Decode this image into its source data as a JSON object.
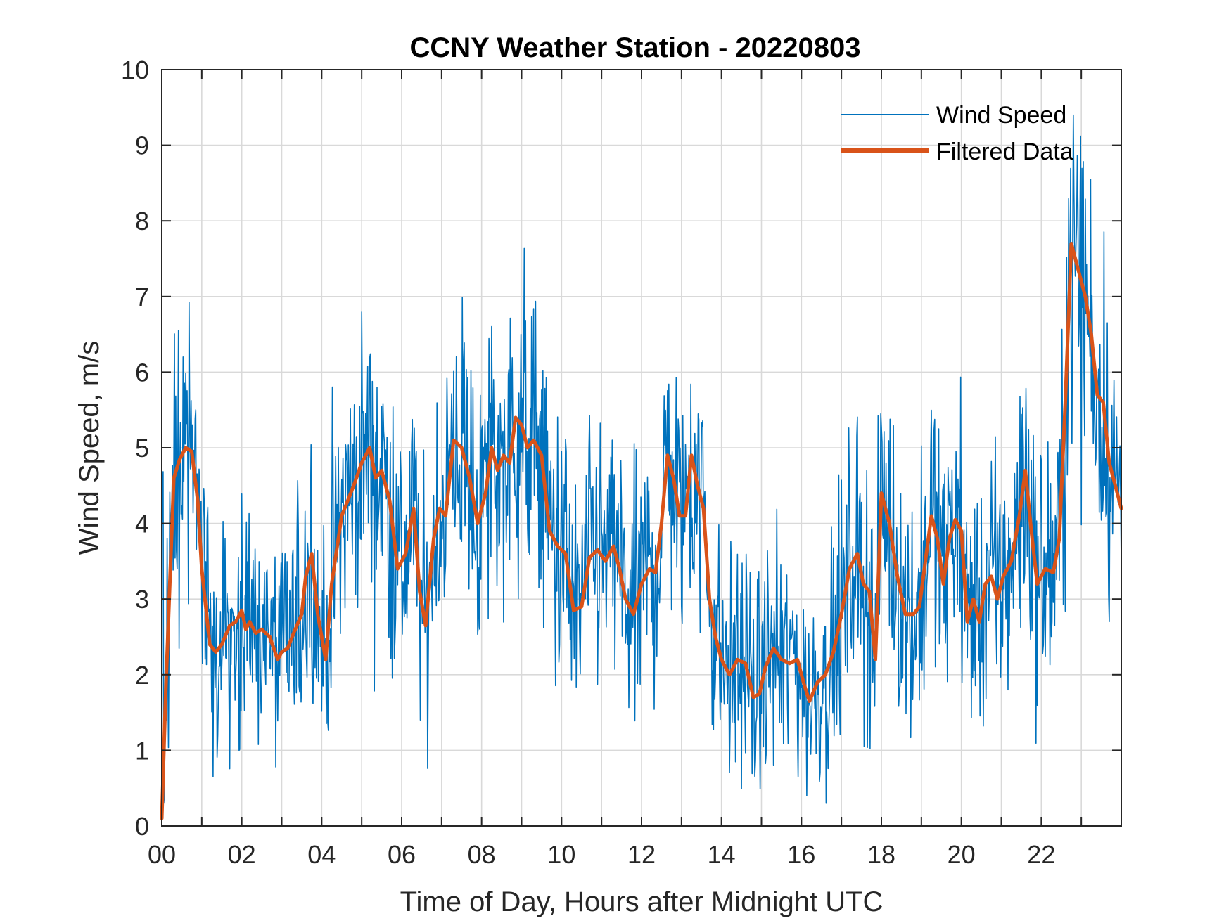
{
  "chart_data": {
    "type": "line",
    "title": "CCNY Weather Station - 20220803",
    "xlabel": "Time of Day, Hours after Midnight UTC",
    "ylabel": "Wind Speed, m/s",
    "xlim": [
      0,
      24
    ],
    "ylim": [
      0,
      10
    ],
    "xticks": [
      0,
      2,
      4,
      6,
      8,
      10,
      12,
      14,
      16,
      18,
      20,
      22
    ],
    "xtick_labels": [
      "00",
      "02",
      "04",
      "06",
      "08",
      "10",
      "12",
      "14",
      "16",
      "18",
      "20",
      "22"
    ],
    "xgrid_step": 1,
    "yticks": [
      0,
      1,
      2,
      3,
      4,
      5,
      6,
      7,
      8,
      9,
      10
    ],
    "ytick_labels": [
      "0",
      "1",
      "2",
      "3",
      "4",
      "5",
      "6",
      "7",
      "8",
      "9",
      "10"
    ],
    "grid": true,
    "legend_position": "top-right",
    "series": [
      {
        "name": "Wind Speed",
        "color": "#0072BD",
        "style": "thin raw 1-minute samples (noisy)",
        "approx_range": [
          0.3,
          9.4
        ]
      },
      {
        "name": "Filtered Data",
        "color": "#D95319",
        "style": "thick smoothed line",
        "x": [
          0.0,
          0.1,
          0.3,
          0.45,
          0.6,
          0.75,
          0.9,
          1.0,
          1.2,
          1.35,
          1.5,
          1.7,
          1.85,
          2.0,
          2.1,
          2.2,
          2.35,
          2.5,
          2.7,
          2.9,
          3.0,
          3.15,
          3.3,
          3.5,
          3.6,
          3.75,
          3.9,
          4.1,
          4.25,
          4.5,
          4.8,
          5.0,
          5.2,
          5.35,
          5.5,
          5.7,
          5.9,
          6.1,
          6.3,
          6.45,
          6.6,
          6.8,
          6.95,
          7.1,
          7.3,
          7.5,
          7.7,
          7.9,
          8.1,
          8.25,
          8.4,
          8.55,
          8.7,
          8.85,
          9.0,
          9.15,
          9.3,
          9.5,
          9.7,
          9.9,
          10.1,
          10.3,
          10.5,
          10.7,
          10.9,
          11.1,
          11.3,
          11.45,
          11.6,
          11.8,
          12.0,
          12.2,
          12.35,
          12.5,
          12.65,
          12.8,
          12.95,
          13.1,
          13.25,
          13.4,
          13.55,
          13.7,
          13.85,
          14.0,
          14.2,
          14.4,
          14.6,
          14.8,
          14.95,
          15.1,
          15.3,
          15.5,
          15.7,
          15.9,
          16.05,
          16.2,
          16.4,
          16.6,
          16.8,
          17.0,
          17.2,
          17.4,
          17.55,
          17.7,
          17.85,
          18.0,
          18.2,
          18.4,
          18.6,
          18.8,
          18.95,
          19.1,
          19.25,
          19.4,
          19.55,
          19.7,
          19.85,
          20.0,
          20.15,
          20.3,
          20.45,
          20.6,
          20.75,
          20.9,
          21.05,
          21.25,
          21.45,
          21.6,
          21.75,
          21.9,
          22.1,
          22.3,
          22.45,
          22.6,
          22.75,
          22.9,
          23.1,
          23.25,
          23.4,
          23.55,
          23.7,
          23.85,
          24.0
        ],
        "values": [
          0.1,
          1.8,
          4.6,
          4.85,
          5.0,
          4.95,
          4.3,
          3.4,
          2.4,
          2.3,
          2.4,
          2.65,
          2.7,
          2.85,
          2.6,
          2.7,
          2.55,
          2.6,
          2.5,
          2.2,
          2.3,
          2.35,
          2.55,
          2.8,
          3.3,
          3.6,
          2.8,
          2.2,
          3.2,
          4.1,
          4.5,
          4.8,
          5.0,
          4.6,
          4.7,
          4.3,
          3.4,
          3.6,
          4.2,
          3.1,
          2.65,
          3.8,
          4.2,
          4.1,
          5.1,
          5.0,
          4.6,
          4.0,
          4.4,
          5.0,
          4.7,
          4.9,
          4.8,
          5.4,
          5.3,
          5.0,
          5.1,
          4.9,
          3.9,
          3.7,
          3.6,
          2.85,
          2.9,
          3.55,
          3.65,
          3.5,
          3.7,
          3.4,
          3.0,
          2.8,
          3.2,
          3.4,
          3.35,
          4.0,
          4.9,
          4.6,
          4.1,
          4.1,
          4.9,
          4.5,
          4.2,
          3.0,
          2.5,
          2.2,
          2.0,
          2.2,
          2.15,
          1.7,
          1.75,
          2.1,
          2.35,
          2.2,
          2.15,
          2.2,
          1.9,
          1.65,
          1.9,
          2.0,
          2.3,
          2.8,
          3.4,
          3.6,
          3.2,
          3.1,
          2.2,
          4.4,
          4.0,
          3.3,
          2.8,
          2.8,
          2.9,
          3.5,
          4.1,
          3.8,
          3.2,
          3.8,
          4.05,
          3.9,
          2.7,
          3.0,
          2.7,
          3.2,
          3.3,
          3.0,
          3.3,
          3.5,
          4.1,
          4.7,
          3.9,
          3.2,
          3.4,
          3.35,
          3.8,
          5.6,
          7.7,
          7.4,
          7.0,
          6.5,
          5.7,
          5.6,
          4.8,
          4.5,
          4.2
        ]
      }
    ]
  }
}
